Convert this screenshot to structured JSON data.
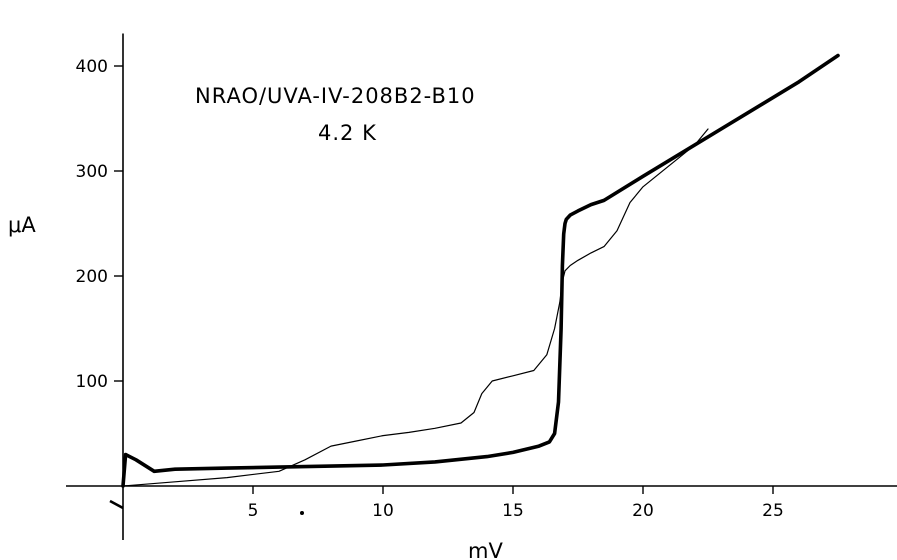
{
  "chart_data": {
    "type": "line",
    "title": "",
    "annotations": [
      "NRAO/UVA-IV-208B2-B10",
      "4.2  K"
    ],
    "xlabel": "mV",
    "ylabel": "μA",
    "xlim": [
      -1.2,
      29.5
    ],
    "ylim": [
      -60,
      450
    ],
    "xticks": [
      5,
      10,
      15,
      20,
      25
    ],
    "yticks": [
      100,
      200,
      300,
      400
    ],
    "grid": false,
    "legend": "none",
    "series": [
      {
        "style": "thick",
        "x": [
          0,
          0.1,
          0.5,
          1.2,
          2,
          4,
          6,
          8,
          10,
          12,
          14,
          15,
          16,
          16.4,
          16.6,
          16.75,
          16.85,
          16.9,
          16.95,
          17.0,
          17.05,
          17.2,
          17.5,
          18,
          18.5,
          20,
          22,
          24,
          26,
          27.5
        ],
        "y": [
          0,
          30,
          25,
          14,
          16,
          17,
          18,
          19,
          20,
          23,
          28,
          32,
          38,
          42,
          50,
          80,
          150,
          210,
          240,
          250,
          254,
          258,
          262,
          268,
          272,
          295,
          325,
          355,
          385,
          410
        ]
      },
      {
        "style": "thin",
        "x": [
          0,
          2,
          4,
          6,
          7,
          8,
          9,
          10,
          11,
          12,
          13,
          13.5,
          13.8,
          14.2,
          15,
          15.8,
          16.3,
          16.6,
          16.8,
          16.9,
          17.0,
          17.2,
          17.5,
          18,
          18.5,
          19,
          19.5,
          20,
          21,
          22,
          22.5
        ],
        "y": [
          0,
          4,
          8,
          14,
          25,
          38,
          43,
          48,
          51,
          55,
          60,
          70,
          88,
          100,
          105,
          110,
          125,
          150,
          175,
          195,
          205,
          210,
          215,
          222,
          228,
          243,
          270,
          285,
          305,
          325,
          340
        ]
      }
    ]
  }
}
